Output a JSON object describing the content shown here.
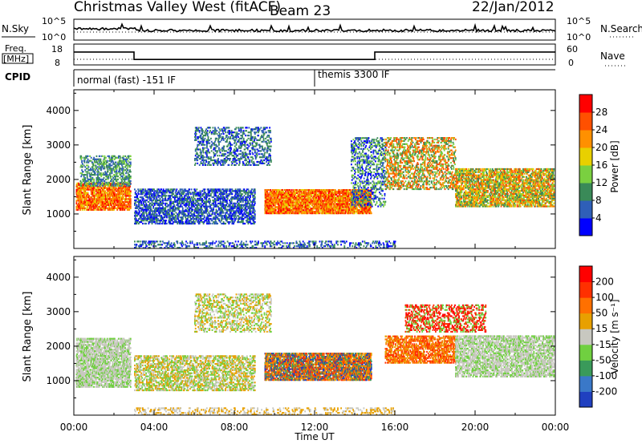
{
  "chart_data": [
    {
      "type": "header",
      "title": "Christmas Valley West (fitACF)",
      "beam": "Beam 23",
      "date": "22/Jan/2012"
    },
    {
      "type": "line",
      "panel": "nsky",
      "left_label": "N.Sky",
      "right_label": "N.Search",
      "left_ticks": [
        "10^5",
        "10^0"
      ],
      "right_ticks": [
        "10^5",
        "10^0"
      ]
    },
    {
      "type": "line",
      "panel": "freq",
      "left_label_lines": [
        "Freq.",
        "[MHz]"
      ],
      "right_label": "Nave",
      "left_ticks": [
        "18",
        "8"
      ],
      "right_ticks": [
        "60",
        "0"
      ],
      "ylim": [
        8,
        18
      ],
      "freq_segments": [
        {
          "t0": 0,
          "t1": 3,
          "mhz": 14.2
        },
        {
          "t0": 3,
          "t1": 15,
          "mhz": 10.6
        },
        {
          "t0": 15,
          "t1": 24,
          "mhz": 14.2
        }
      ]
    },
    {
      "type": "annotation",
      "panel": "cpid",
      "label": "CPID",
      "modes": [
        {
          "t": 0,
          "text": "normal (fast) -151 IF"
        },
        {
          "t": 12,
          "text": "themis 3300 IF"
        }
      ]
    },
    {
      "type": "heatmap",
      "panel": "power",
      "ylabel": "Slant Range [km]",
      "ylim": [
        0,
        4600
      ],
      "yticks": [
        1000,
        2000,
        3000,
        4000
      ],
      "colorbar_label": "Power [dB]",
      "colorbar_ticks": [
        4,
        8,
        12,
        16,
        20,
        24,
        28
      ],
      "colorbar_colors": [
        "#0000ff",
        "#2f5fb8",
        "#3a8a58",
        "#7ad040",
        "#e8d000",
        "#ff9000",
        "#ff5000",
        "#ff0000"
      ]
    },
    {
      "type": "heatmap",
      "panel": "velocity",
      "ylabel": "Slant Range [km]",
      "ylim": [
        0,
        4600
      ],
      "yticks": [
        1000,
        2000,
        3000,
        4000
      ],
      "xlabel": "Time UT",
      "xticks": [
        "00:00",
        "04:00",
        "08:00",
        "12:00",
        "16:00",
        "20:00",
        "00:00"
      ],
      "colorbar_label": "Velocity [m s⁻¹]",
      "colorbar_ticks": [
        200,
        100,
        50,
        15,
        -15,
        -50,
        -100,
        -200
      ],
      "colorbar_colors": [
        "#2040c0",
        "#3a78c8",
        "#3a9a5a",
        "#70d040",
        "#c8c8c0",
        "#e8a000",
        "#ff7000",
        "#ff3000",
        "#ff0000"
      ]
    }
  ]
}
